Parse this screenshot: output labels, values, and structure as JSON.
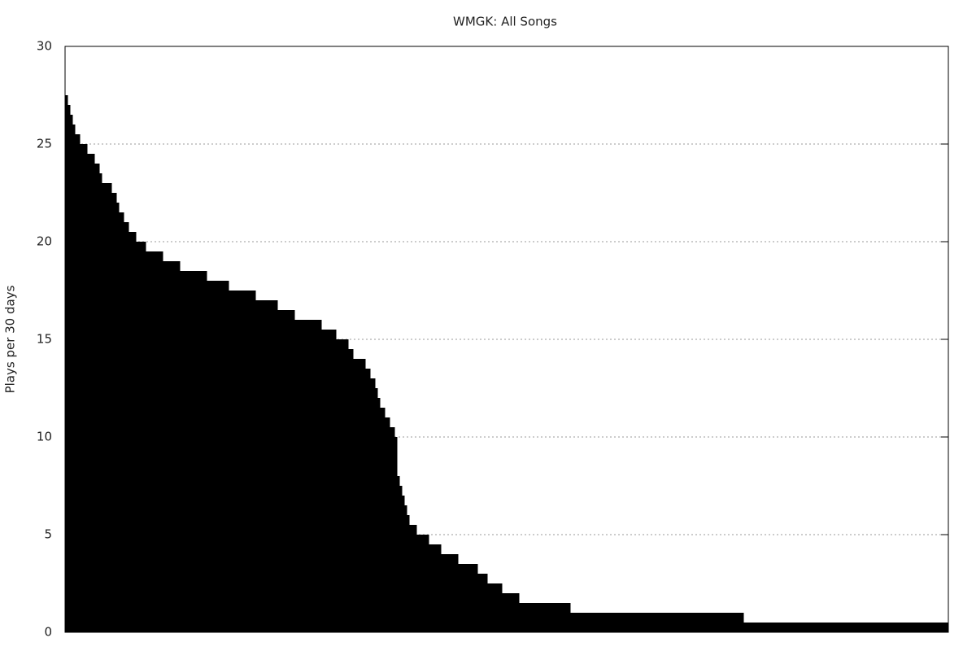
{
  "chart_data": {
    "type": "step",
    "title": "WMGK: All Songs",
    "y_label": "Plays per 30 days",
    "x": [
      0,
      1,
      2,
      3,
      4,
      6,
      9,
      12,
      14,
      15,
      19,
      21,
      22,
      24,
      26,
      29,
      33,
      40,
      47,
      58,
      67,
      78,
      87,
      94,
      105,
      111,
      116,
      118,
      123,
      125,
      127,
      128,
      129,
      131,
      133,
      135,
      136,
      137,
      138,
      139,
      140,
      141,
      144,
      149,
      154,
      161,
      169,
      173,
      179,
      186,
      207,
      278
    ],
    "values": [
      27.5,
      27,
      26.5,
      26,
      25.5,
      25,
      24.5,
      24,
      23.5,
      23,
      22.5,
      22,
      21.5,
      21,
      20.5,
      20,
      19.5,
      19,
      18.5,
      18,
      17.5,
      17,
      16.5,
      16,
      15.5,
      15,
      14.5,
      14,
      13.5,
      13,
      12.5,
      12,
      11.5,
      11,
      10.5,
      10,
      8,
      7.5,
      7,
      6.5,
      6,
      5.5,
      5,
      4.5,
      4,
      3.5,
      3,
      2.5,
      2,
      1.5,
      1,
      0.5
    ],
    "color": "#000000",
    "xlim": [
      0,
      362
    ],
    "ylim": [
      0,
      30
    ],
    "yticks": [
      0,
      5,
      10,
      15,
      20,
      25,
      30
    ],
    "grid": true
  }
}
